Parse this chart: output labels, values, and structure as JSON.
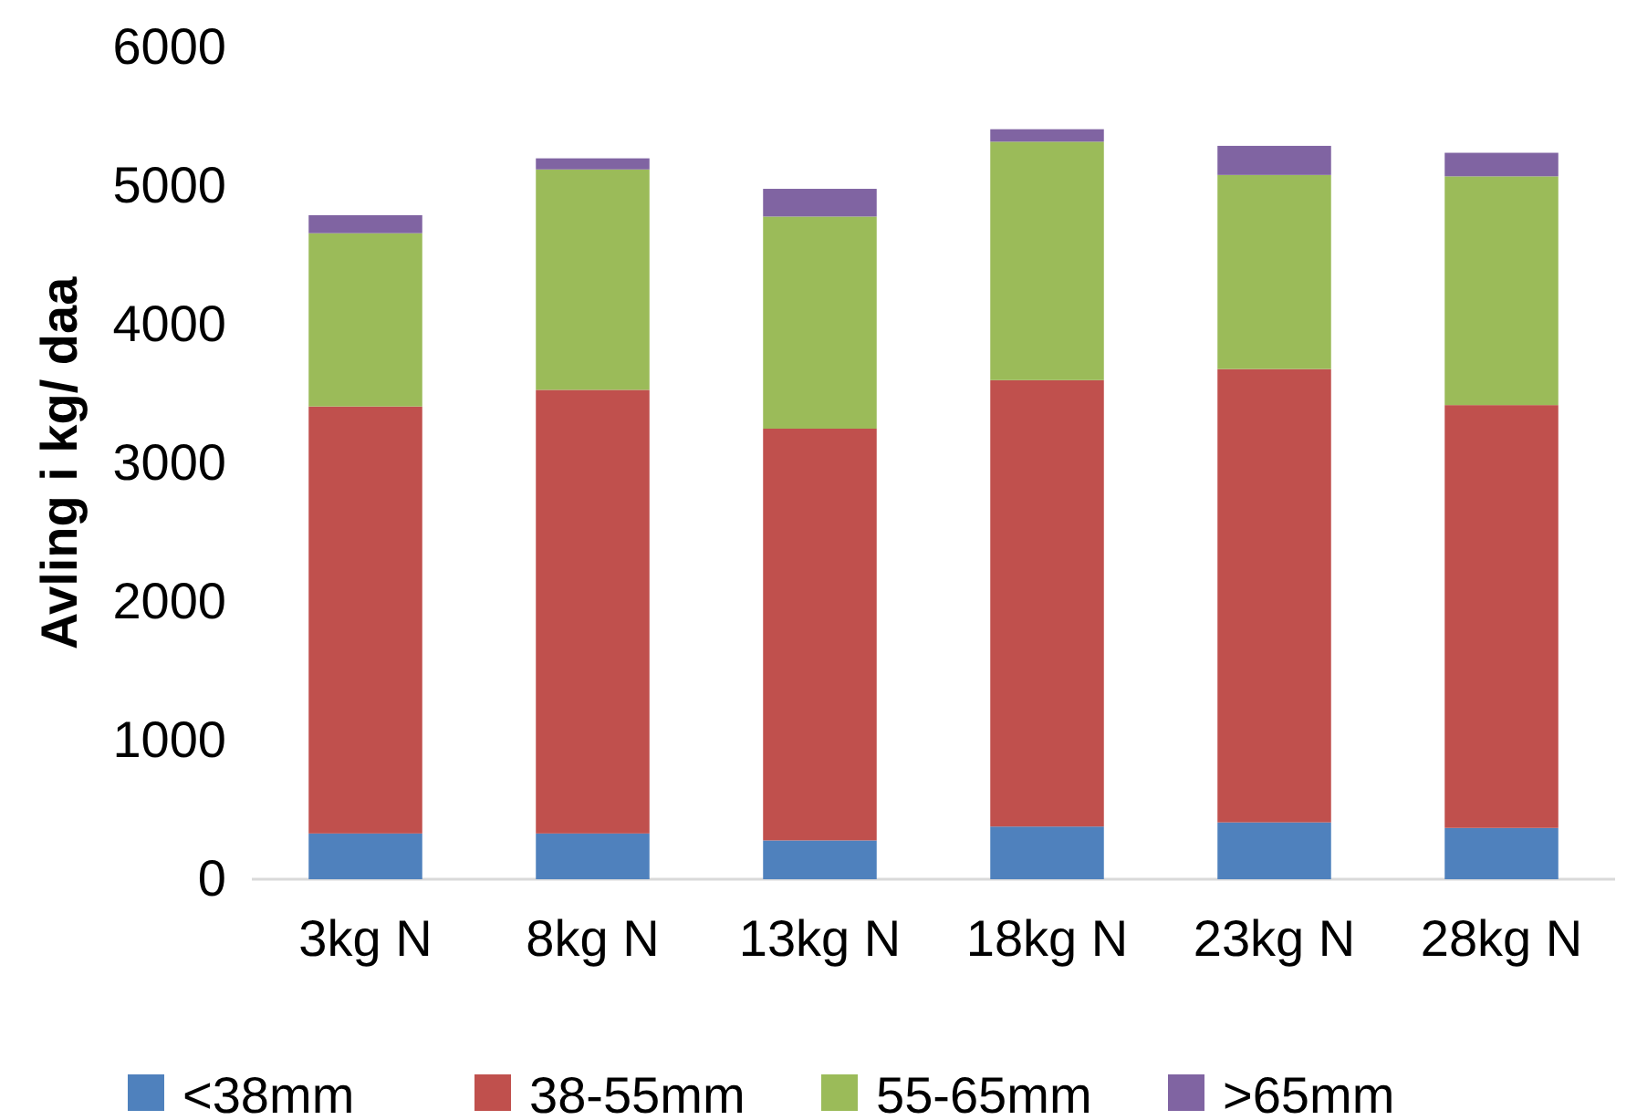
{
  "chart_data": {
    "type": "bar",
    "stacked": true,
    "ylabel": "Avling i kg/ daa",
    "categories": [
      "3kg N",
      "8kg N",
      "13kg N",
      "18kg N",
      "23kg N",
      "28kg N"
    ],
    "series": [
      {
        "name": "<38mm",
        "color": "#4f81bd",
        "values": [
          330,
          330,
          280,
          380,
          410,
          370
        ]
      },
      {
        "name": "38-55mm",
        "color": "#c0504d",
        "values": [
          3080,
          3200,
          2970,
          3220,
          3270,
          3050
        ]
      },
      {
        "name": "55-65mm",
        "color": "#9bbb59",
        "values": [
          1250,
          1590,
          1530,
          1720,
          1400,
          1650
        ]
      },
      {
        "name": ">65mm",
        "color": "#8064a2",
        "values": [
          130,
          80,
          200,
          90,
          210,
          170
        ]
      }
    ],
    "ylim": [
      0,
      6000
    ],
    "yticks": [
      0,
      1000,
      2000,
      3000,
      4000,
      5000,
      6000
    ],
    "grid": false,
    "legend": "bottom"
  }
}
